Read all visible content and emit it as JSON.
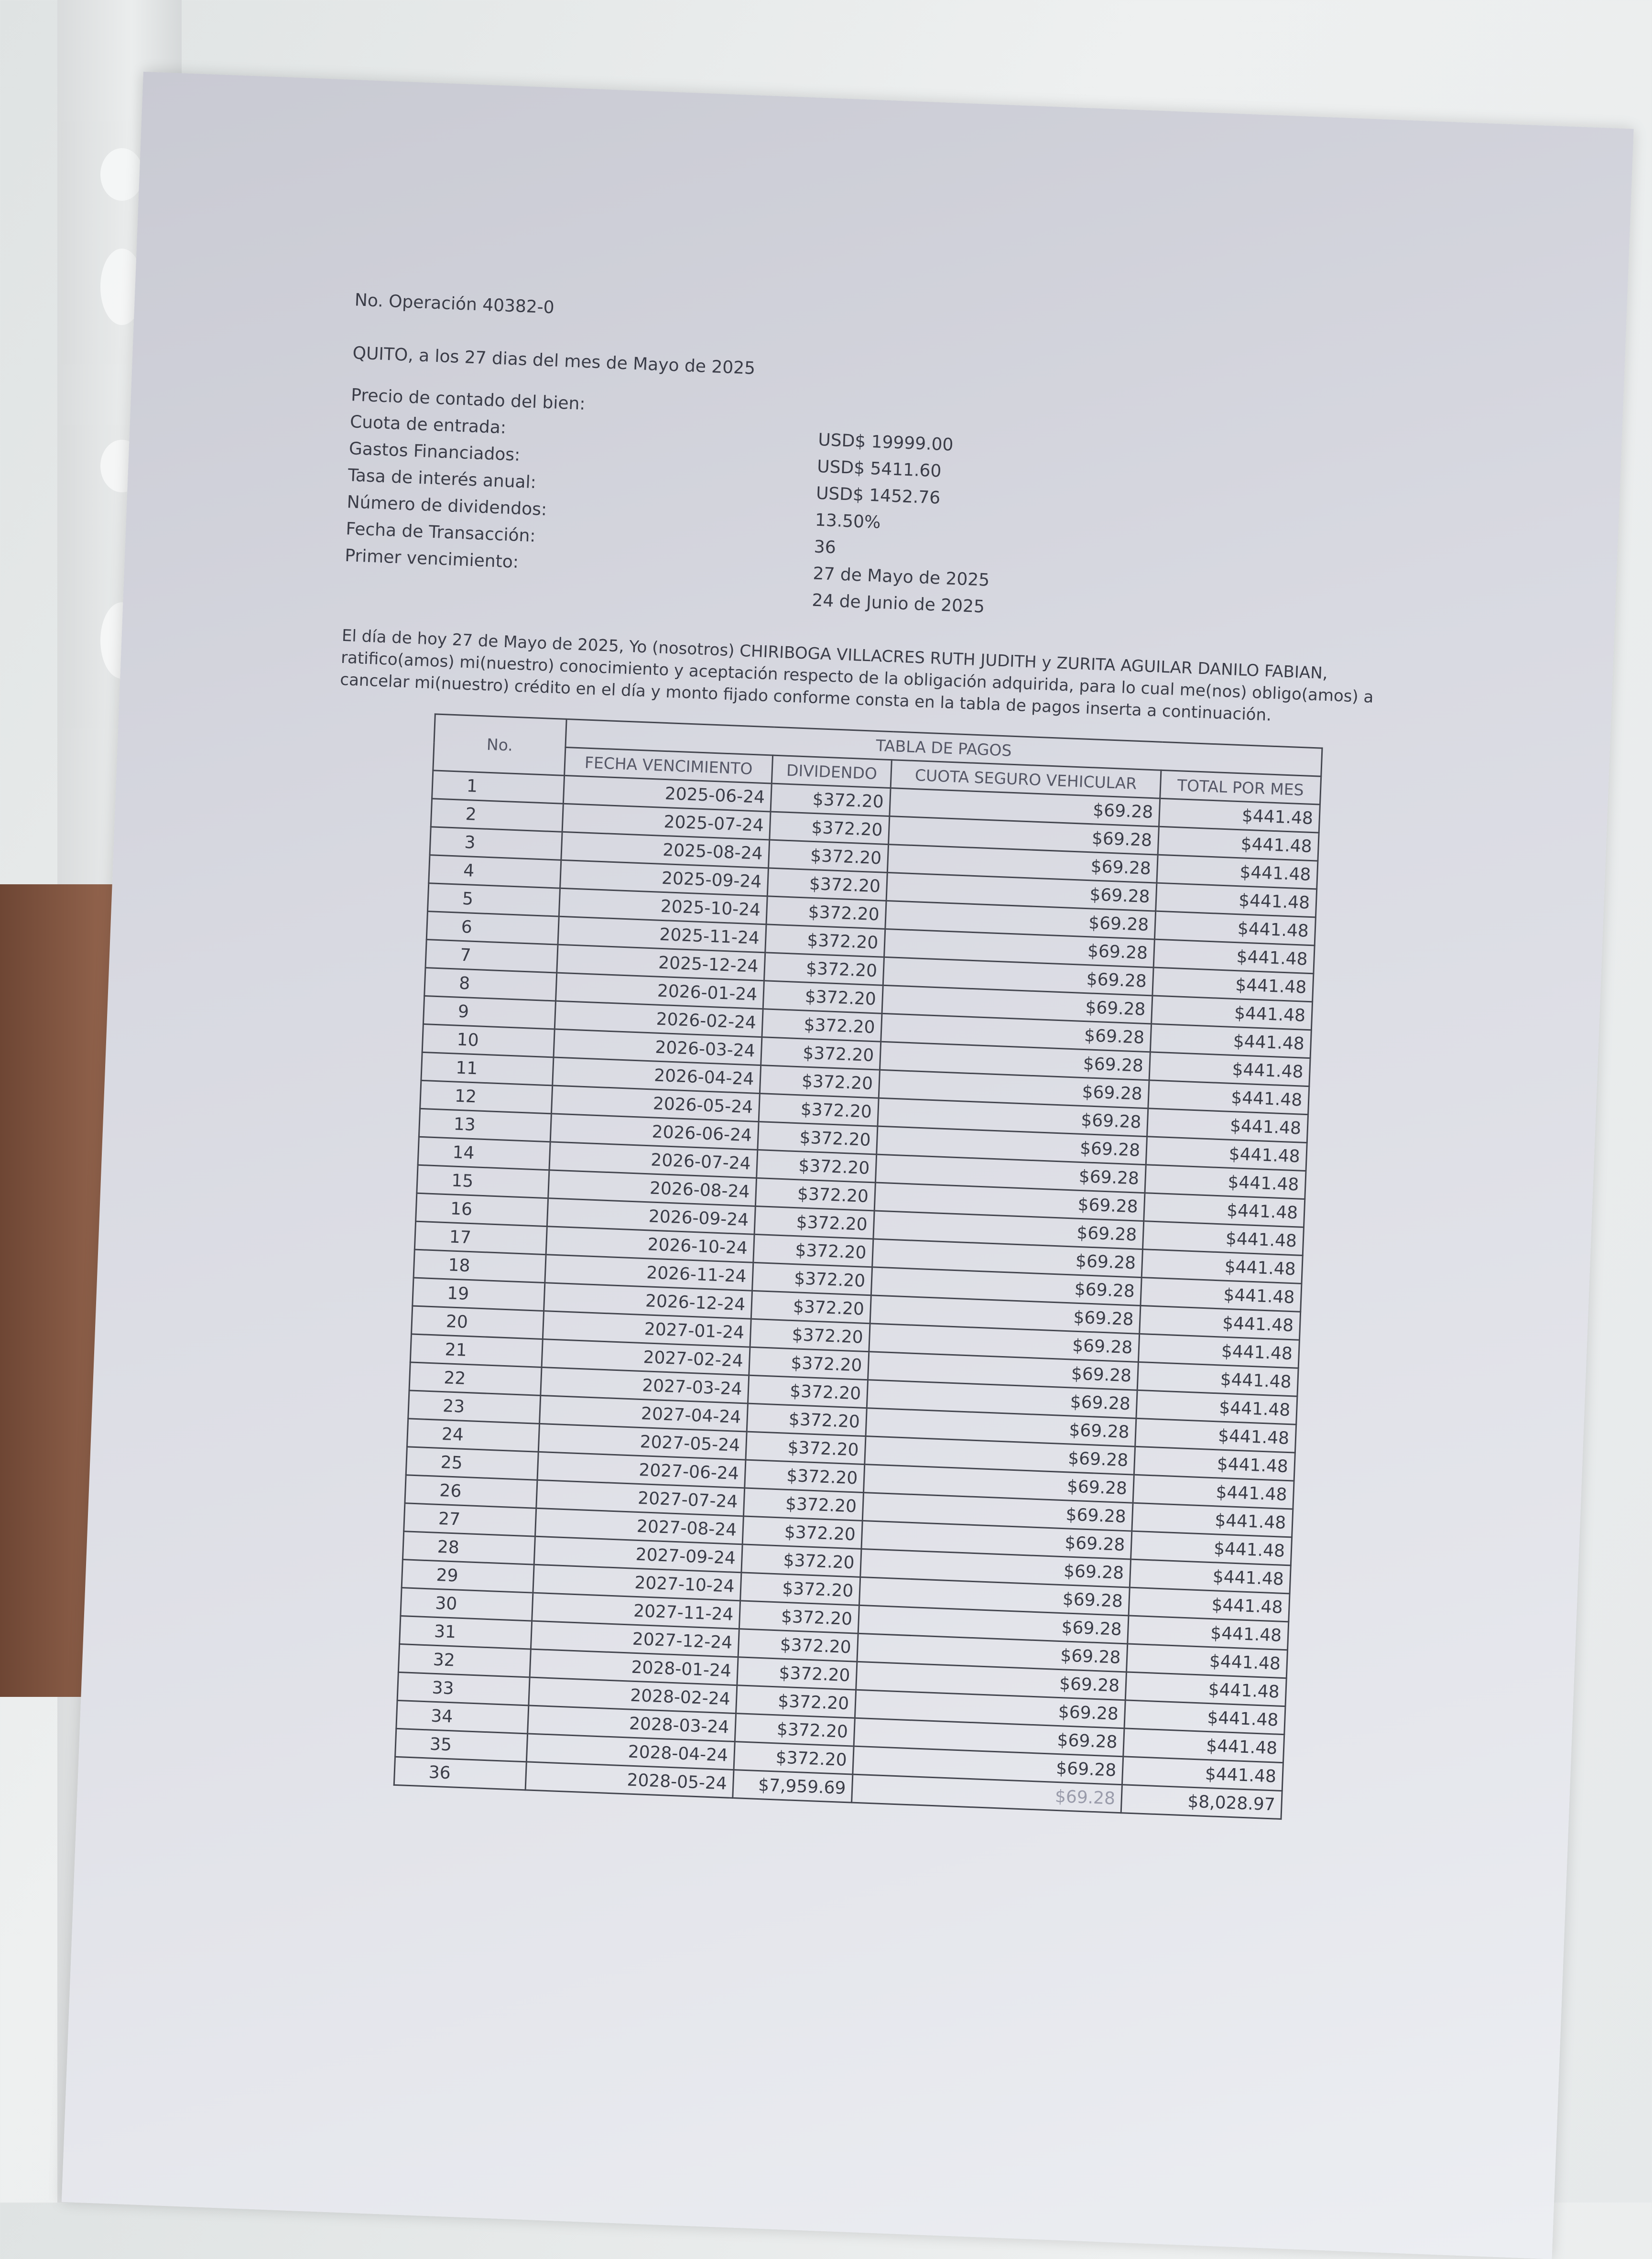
{
  "document": {
    "operation": "No. Operación 40382-0",
    "place_date": "QUITO, a los 27 dias del mes de Mayo de 2025",
    "fields": [
      {
        "label": "Precio de contado del bien:",
        "value": "USD$ 19999.00"
      },
      {
        "label": "Cuota de entrada:",
        "value": "USD$ 5411.60"
      },
      {
        "label": "Gastos Financiados:",
        "value": "USD$ 1452.76"
      },
      {
        "label": "Tasa de interés anual:",
        "value": "13.50%"
      },
      {
        "label": "Número de dividendos:",
        "value": "36"
      },
      {
        "label": "Fecha de Transacción:",
        "value": "27 de Mayo de 2025"
      },
      {
        "label": "Primer vencimiento:",
        "value": "24 de Junio de 2025"
      }
    ],
    "paragraph": "El día de hoy 27 de Mayo de 2025, Yo (nosotros) CHIRIBOGA VILLACRES RUTH JUDITH y ZURITA AGUILAR DANILO FABIAN, ratifico(amos) mi(nuestro) conocimiento y aceptación respecto de la obligación adquirida, para lo cual me(nos) obligo(amos) a cancelar mi(nuestro) crédito en el día y monto fijado conforme consta en la tabla de pagos inserta a continuación."
  },
  "table": {
    "title": "TABLA DE PAGOS",
    "headers": [
      "No.",
      "FECHA VENCIMIENTO",
      "DIVIDENDO",
      "CUOTA SEGURO VEHICULAR",
      "TOTAL POR MES"
    ],
    "rows": [
      [
        "1",
        "2025-06-24",
        "$372.20",
        "$69.28",
        "$441.48"
      ],
      [
        "2",
        "2025-07-24",
        "$372.20",
        "$69.28",
        "$441.48"
      ],
      [
        "3",
        "2025-08-24",
        "$372.20",
        "$69.28",
        "$441.48"
      ],
      [
        "4",
        "2025-09-24",
        "$372.20",
        "$69.28",
        "$441.48"
      ],
      [
        "5",
        "2025-10-24",
        "$372.20",
        "$69.28",
        "$441.48"
      ],
      [
        "6",
        "2025-11-24",
        "$372.20",
        "$69.28",
        "$441.48"
      ],
      [
        "7",
        "2025-12-24",
        "$372.20",
        "$69.28",
        "$441.48"
      ],
      [
        "8",
        "2026-01-24",
        "$372.20",
        "$69.28",
        "$441.48"
      ],
      [
        "9",
        "2026-02-24",
        "$372.20",
        "$69.28",
        "$441.48"
      ],
      [
        "10",
        "2026-03-24",
        "$372.20",
        "$69.28",
        "$441.48"
      ],
      [
        "11",
        "2026-04-24",
        "$372.20",
        "$69.28",
        "$441.48"
      ],
      [
        "12",
        "2026-05-24",
        "$372.20",
        "$69.28",
        "$441.48"
      ],
      [
        "13",
        "2026-06-24",
        "$372.20",
        "$69.28",
        "$441.48"
      ],
      [
        "14",
        "2026-07-24",
        "$372.20",
        "$69.28",
        "$441.48"
      ],
      [
        "15",
        "2026-08-24",
        "$372.20",
        "$69.28",
        "$441.48"
      ],
      [
        "16",
        "2026-09-24",
        "$372.20",
        "$69.28",
        "$441.48"
      ],
      [
        "17",
        "2026-10-24",
        "$372.20",
        "$69.28",
        "$441.48"
      ],
      [
        "18",
        "2026-11-24",
        "$372.20",
        "$69.28",
        "$441.48"
      ],
      [
        "19",
        "2026-12-24",
        "$372.20",
        "$69.28",
        "$441.48"
      ],
      [
        "20",
        "2027-01-24",
        "$372.20",
        "$69.28",
        "$441.48"
      ],
      [
        "21",
        "2027-02-24",
        "$372.20",
        "$69.28",
        "$441.48"
      ],
      [
        "22",
        "2027-03-24",
        "$372.20",
        "$69.28",
        "$441.48"
      ],
      [
        "23",
        "2027-04-24",
        "$372.20",
        "$69.28",
        "$441.48"
      ],
      [
        "24",
        "2027-05-24",
        "$372.20",
        "$69.28",
        "$441.48"
      ],
      [
        "25",
        "2027-06-24",
        "$372.20",
        "$69.28",
        "$441.48"
      ],
      [
        "26",
        "2027-07-24",
        "$372.20",
        "$69.28",
        "$441.48"
      ],
      [
        "27",
        "2027-08-24",
        "$372.20",
        "$69.28",
        "$441.48"
      ],
      [
        "28",
        "2027-09-24",
        "$372.20",
        "$69.28",
        "$441.48"
      ],
      [
        "29",
        "2027-10-24",
        "$372.20",
        "$69.28",
        "$441.48"
      ],
      [
        "30",
        "2027-11-24",
        "$372.20",
        "$69.28",
        "$441.48"
      ],
      [
        "31",
        "2027-12-24",
        "$372.20",
        "$69.28",
        "$441.48"
      ],
      [
        "32",
        "2028-01-24",
        "$372.20",
        "$69.28",
        "$441.48"
      ],
      [
        "33",
        "2028-02-24",
        "$372.20",
        "$69.28",
        "$441.48"
      ],
      [
        "34",
        "2028-03-24",
        "$372.20",
        "$69.28",
        "$441.48"
      ],
      [
        "35",
        "2028-04-24",
        "$372.20",
        "$69.28",
        "$441.48"
      ],
      [
        "36",
        "2028-05-24",
        "$7,959.69",
        "$69.28",
        "$8,028.97"
      ]
    ]
  }
}
